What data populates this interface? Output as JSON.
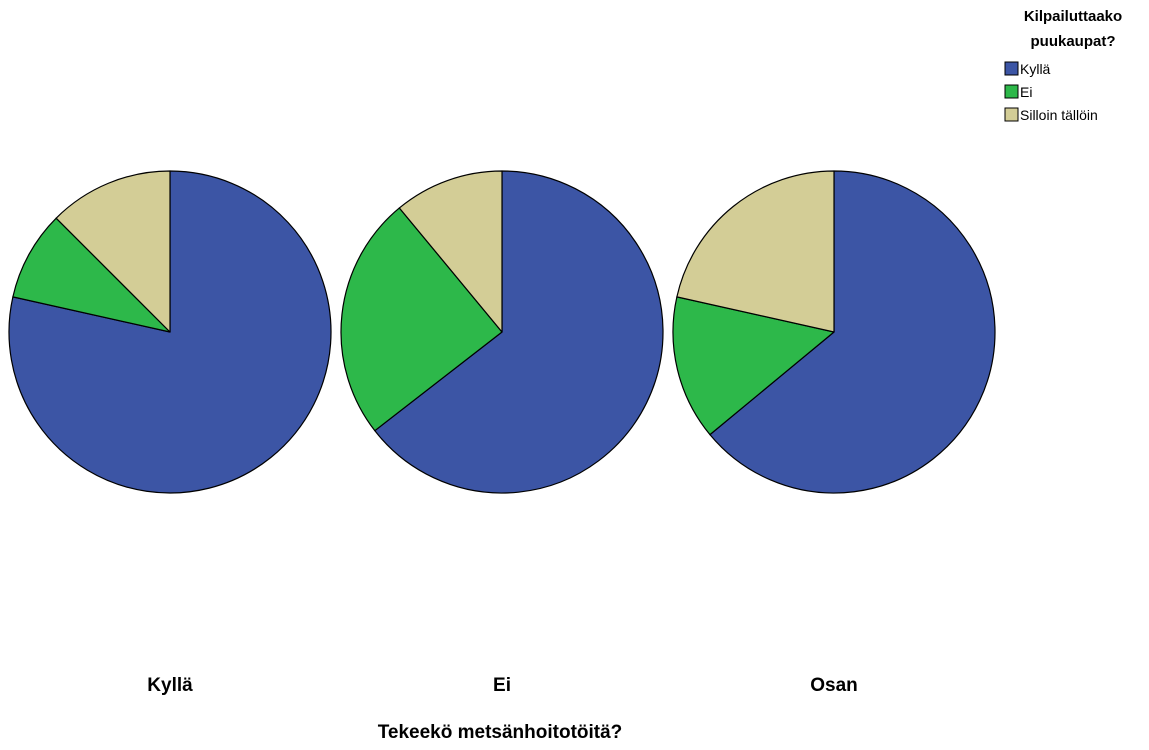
{
  "chart_data": {
    "type": "pie",
    "xlabel": "Tekeekö metsänhoitotöitä?",
    "legend": {
      "title": [
        "Kilpailuttaako",
        "puukaupat?"
      ],
      "placement": "top-right"
    },
    "slice_names": [
      "Kyllä",
      "Ei",
      "Silloin tällöin"
    ],
    "colors": {
      "Kyllä": "#3c55a5",
      "Ei": "#2db84a",
      "Silloin tällöin": "#d3cd96"
    },
    "pies": [
      {
        "category": "Kyllä",
        "slices": [
          {
            "name": "Kyllä",
            "value": 78.5
          },
          {
            "name": "Ei",
            "value": 9.0
          },
          {
            "name": "Silloin tällöin",
            "value": 12.5
          }
        ]
      },
      {
        "category": "Ei",
        "slices": [
          {
            "name": "Kyllä",
            "value": 64.5
          },
          {
            "name": "Ei",
            "value": 24.5
          },
          {
            "name": "Silloin tällöin",
            "value": 11.0
          }
        ]
      },
      {
        "category": "Osan",
        "slices": [
          {
            "name": "Kyllä",
            "value": 64.0
          },
          {
            "name": "Ei",
            "value": 14.5
          },
          {
            "name": "Silloin tällöin",
            "value": 21.5
          }
        ]
      }
    ]
  }
}
